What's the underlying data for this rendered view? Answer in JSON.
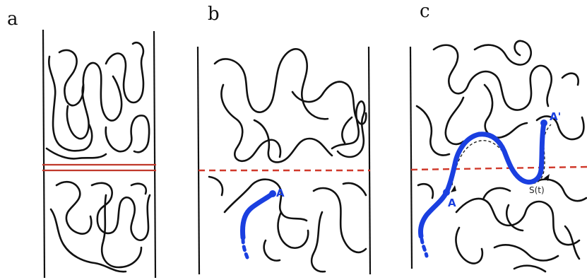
{
  "panels": {
    "a": {
      "letter": "a"
    },
    "b": {
      "letter": "b",
      "point_label": "A"
    },
    "c": {
      "letter": "c",
      "start_label": "A",
      "end_label": "A'",
      "segment_label": "S(t)"
    }
  },
  "colors": {
    "chain": "#111111",
    "interface_lines": "#c0392b",
    "tracer_chain": "#1a3fe0"
  }
}
